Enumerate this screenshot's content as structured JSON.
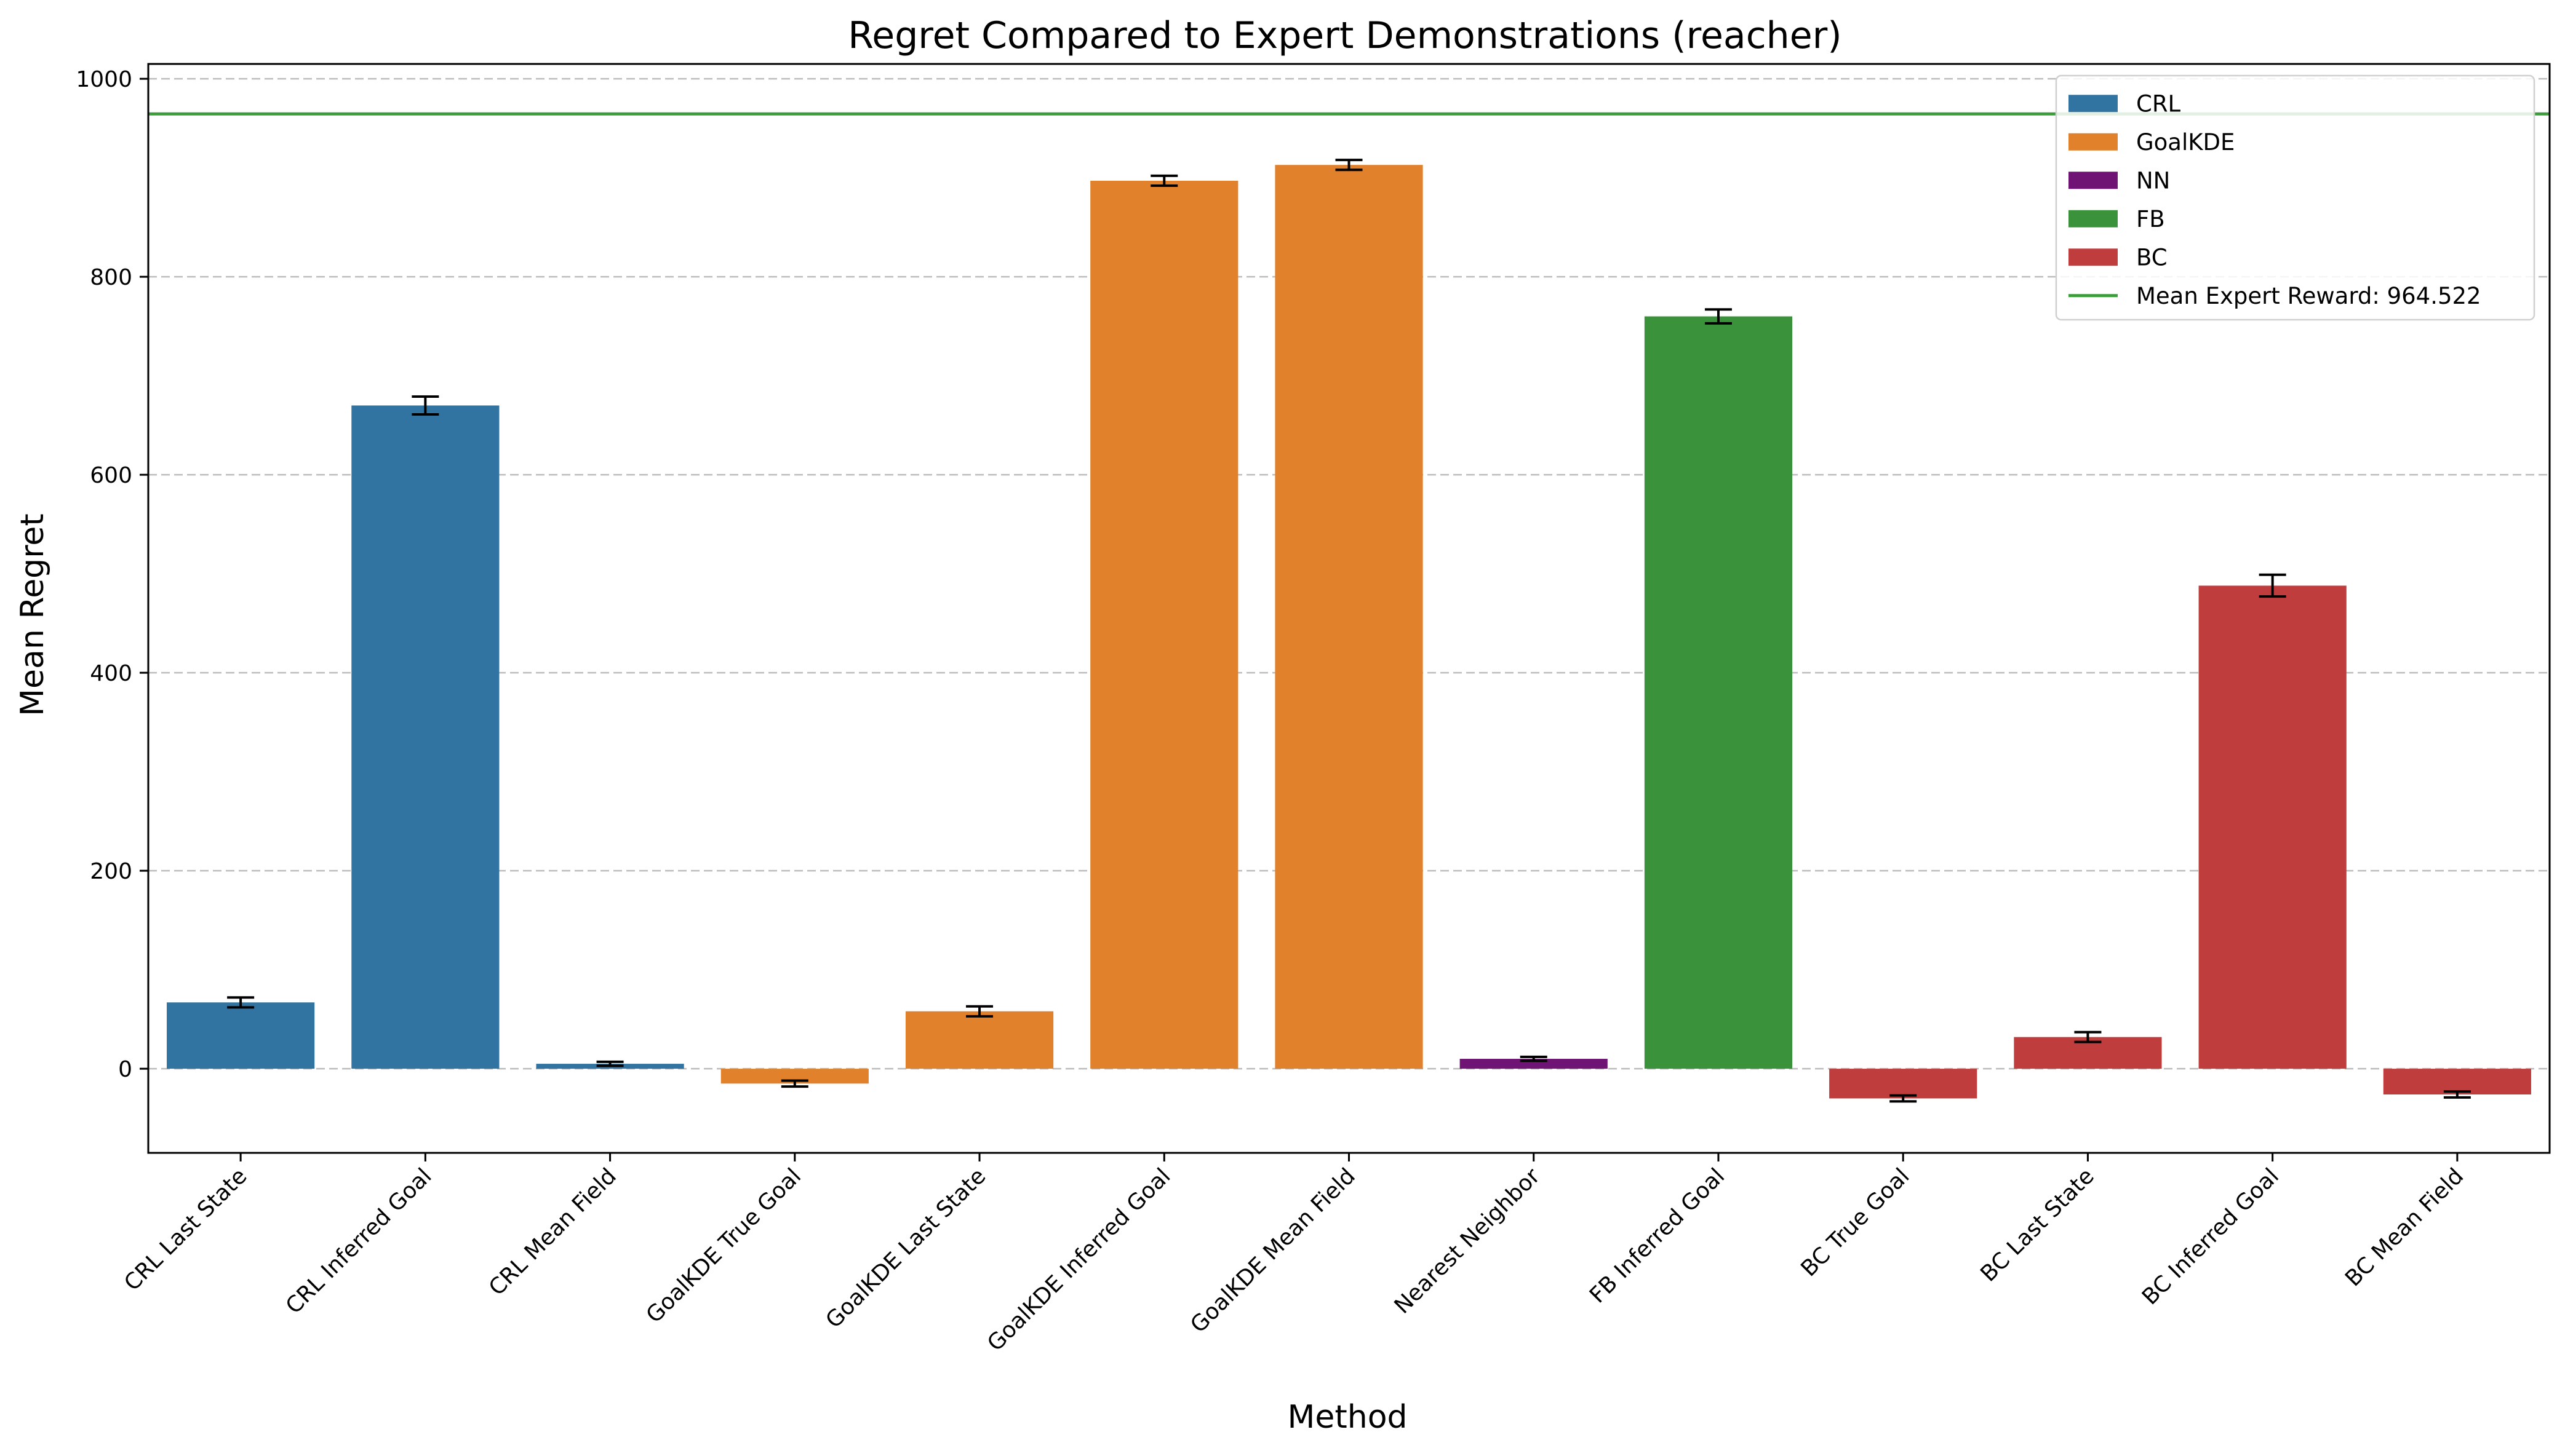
{
  "chart_data": {
    "type": "bar",
    "title": "Regret Compared to Expert Demonstrations (reacher)",
    "xlabel": "Method",
    "ylabel": "Mean Regret",
    "ylim": [
      -85,
      1015
    ],
    "yticks": [
      0,
      200,
      400,
      600,
      800,
      1000
    ],
    "grid": "y-dashed",
    "legend_position": "top-right",
    "categories": [
      "CRL Last State",
      "CRL Inferred Goal",
      "CRL Mean Field",
      "GoalKDE True Goal",
      "GoalKDE Last State",
      "GoalKDE Inferred Goal",
      "GoalKDE Mean Field",
      "Nearest Neighbor",
      "FB Inferred Goal",
      "BC True Goal",
      "BC Last State",
      "BC Inferred Goal",
      "BC Mean Field"
    ],
    "values": [
      67,
      670,
      5,
      -15,
      58,
      897,
      913,
      10,
      760,
      -30,
      32,
      488,
      -26
    ],
    "errors": [
      5,
      9,
      2,
      3,
      5,
      5,
      5,
      2,
      7,
      3,
      5,
      11,
      3
    ],
    "groups": [
      "CRL",
      "CRL",
      "CRL",
      "GoalKDE",
      "GoalKDE",
      "GoalKDE",
      "GoalKDE",
      "NN",
      "FB",
      "BC",
      "BC",
      "BC",
      "BC"
    ],
    "series": [
      {
        "name": "CRL",
        "color": "#3274a1"
      },
      {
        "name": "GoalKDE",
        "color": "#e1812c"
      },
      {
        "name": "NN",
        "color": "#6f1474"
      },
      {
        "name": "FB",
        "color": "#3a923a"
      },
      {
        "name": "BC",
        "color": "#c03d3e"
      }
    ],
    "reference_line": {
      "label": "Mean Expert Reward: 964.522",
      "value": 964.522,
      "color": "#3a9d3a"
    }
  }
}
